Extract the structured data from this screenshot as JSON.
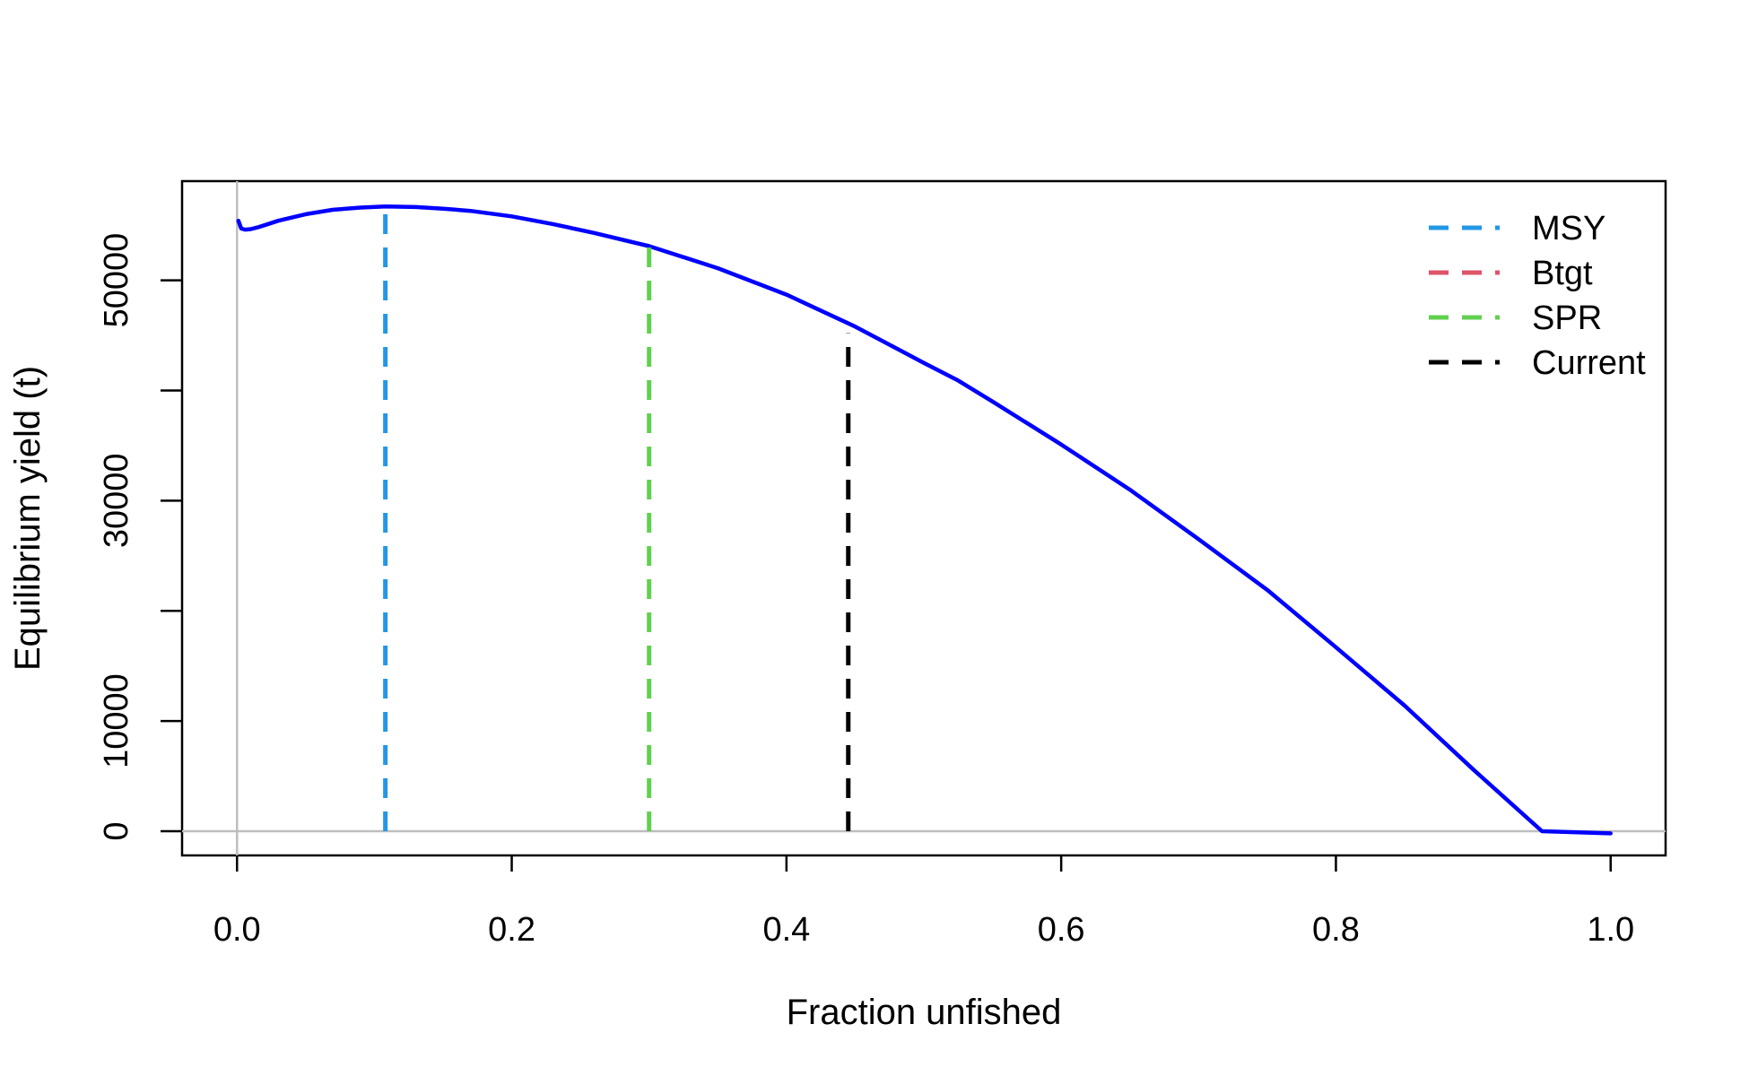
{
  "chart_data": {
    "type": "line",
    "title": "",
    "xlabel": "Fraction unfished",
    "ylabel": "Equilibrium yield (t)",
    "xlim": [
      -0.04,
      1.04
    ],
    "ylim": [
      -2200,
      59000
    ],
    "xticks": [
      0.0,
      0.2,
      0.4,
      0.6,
      0.8,
      1.0
    ],
    "xtick_labels": [
      "0.0",
      "0.2",
      "0.4",
      "0.6",
      "0.8",
      "1.0"
    ],
    "yticks": [
      0,
      10000,
      20000,
      30000,
      40000,
      50000
    ],
    "ytick_labels": [
      "0",
      "10000",
      "",
      "30000",
      "",
      "50000"
    ],
    "grid": false,
    "reference_lines": {
      "x": 0,
      "y": 0,
      "color": "#bebebe"
    },
    "series": [
      {
        "color": "#0000ff",
        "x": [
          0.001,
          0.003,
          0.006,
          0.01,
          0.015,
          0.02,
          0.03,
          0.05,
          0.07,
          0.09,
          0.108,
          0.13,
          0.15,
          0.17,
          0.2,
          0.23,
          0.26,
          0.3,
          0.35,
          0.4,
          0.45,
          0.5,
          0.525,
          0.55,
          0.6,
          0.65,
          0.7,
          0.75,
          0.8,
          0.85,
          0.9,
          0.95,
          1.0
        ],
        "y": [
          55400,
          54700,
          54600,
          54650,
          54800,
          55000,
          55400,
          56000,
          56400,
          56600,
          56700,
          56650,
          56500,
          56300,
          55800,
          55100,
          54300,
          53100,
          51100,
          48700,
          45800,
          42500,
          40900,
          39000,
          35100,
          31000,
          26500,
          21900,
          16700,
          11400,
          5600,
          0,
          -200
        ]
      }
    ],
    "vlines": [
      {
        "name": "MSY",
        "x": 0.108,
        "y_top": 56700,
        "color": "#2297e6"
      },
      {
        "name": "SPR",
        "x": 0.3,
        "y_top": 53100,
        "color": "#61d04f"
      },
      {
        "name": "Current",
        "x": 0.445,
        "y_top": 45200,
        "color": "#000000"
      }
    ],
    "legend": {
      "position": "top-right",
      "items": [
        {
          "label": "MSY",
          "color": "#2297e6"
        },
        {
          "label": "Btgt",
          "color": "#df536b"
        },
        {
          "label": "SPR",
          "color": "#61d04f"
        },
        {
          "label": "Current",
          "color": "#000000"
        }
      ]
    }
  }
}
